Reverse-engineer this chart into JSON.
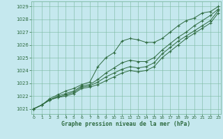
{
  "xlabel": "Graphe pression niveau de la mer (hPa)",
  "bg_color": "#c5e8ee",
  "grid_color": "#7ab8a0",
  "line_color": "#2d6a3f",
  "hours": [
    0,
    1,
    2,
    3,
    4,
    5,
    6,
    7,
    8,
    9,
    10,
    11,
    12,
    13,
    14,
    15,
    16,
    17,
    18,
    19,
    20,
    21,
    22,
    23
  ],
  "line_top": [
    1021.0,
    1021.3,
    1021.8,
    1022.1,
    1022.4,
    1022.6,
    1022.9,
    1023.1,
    1024.3,
    1025.0,
    1025.4,
    1026.3,
    1026.5,
    1026.4,
    1026.2,
    1026.2,
    1026.5,
    1027.0,
    1027.5,
    1027.9,
    1028.1,
    1028.5,
    1028.6,
    1029.0
  ],
  "line_mid1": [
    1021.0,
    1021.3,
    1021.7,
    1022.0,
    1022.2,
    1022.4,
    1022.8,
    1022.9,
    1023.3,
    1023.8,
    1024.2,
    1024.6,
    1024.8,
    1024.7,
    1024.7,
    1025.0,
    1025.6,
    1026.1,
    1026.6,
    1027.0,
    1027.5,
    1027.9,
    1028.3,
    1028.8
  ],
  "line_mid2": [
    1021.0,
    1021.3,
    1021.7,
    1021.9,
    1022.1,
    1022.3,
    1022.7,
    1022.8,
    1023.1,
    1023.5,
    1023.8,
    1024.1,
    1024.3,
    1024.2,
    1024.3,
    1024.6,
    1025.3,
    1025.8,
    1026.3,
    1026.7,
    1027.1,
    1027.5,
    1027.9,
    1028.7
  ],
  "line_bot": [
    1021.0,
    1021.3,
    1021.7,
    1021.9,
    1022.0,
    1022.2,
    1022.6,
    1022.7,
    1022.9,
    1023.2,
    1023.5,
    1023.8,
    1024.0,
    1023.9,
    1024.0,
    1024.3,
    1025.0,
    1025.5,
    1026.0,
    1026.5,
    1026.9,
    1027.3,
    1027.7,
    1028.5
  ],
  "ylim_min": 1020.6,
  "ylim_max": 1029.4,
  "yticks": [
    1021,
    1022,
    1023,
    1024,
    1025,
    1026,
    1027,
    1028,
    1029
  ],
  "xlim_min": -0.3,
  "xlim_max": 23.3
}
